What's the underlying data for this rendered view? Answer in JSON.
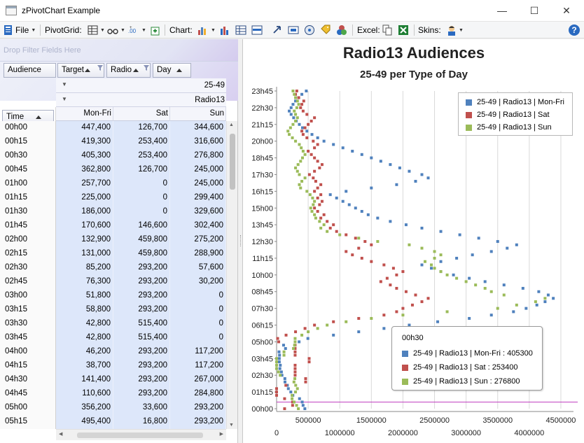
{
  "window": {
    "title": "zPivotChart Example",
    "minimize_glyph": "—",
    "maximize_glyph": "☐",
    "close_glyph": "✕"
  },
  "toolbar": {
    "file_label": "File",
    "pivotgrid_label": "PivotGrid:",
    "chart_label": "Chart:",
    "excel_label": "Excel:",
    "skins_label": "Skins:",
    "help_glyph": "?"
  },
  "filter_zone": {
    "placeholder": "Drop Filter Fields Here"
  },
  "fields": {
    "data_field": "Audience",
    "column_fields": [
      "Target",
      "Radio",
      "Day"
    ],
    "row_field": "Time"
  },
  "col_headers": {
    "target_value": "25-49",
    "radio_value": "Radio13"
  },
  "value_headers": [
    "Mon-Fri",
    "Sat",
    "Sun"
  ],
  "rows": [
    {
      "time": "00h00",
      "v": [
        "447,400",
        "126,700",
        "344,600"
      ]
    },
    {
      "time": "00h15",
      "v": [
        "419,300",
        "253,400",
        "316,600"
      ]
    },
    {
      "time": "00h30",
      "v": [
        "405,300",
        "253,400",
        "276,800"
      ]
    },
    {
      "time": "00h45",
      "v": [
        "362,800",
        "126,700",
        "245,000"
      ]
    },
    {
      "time": "01h00",
      "v": [
        "257,700",
        "0",
        "245,000"
      ]
    },
    {
      "time": "01h15",
      "v": [
        "225,000",
        "0",
        "299,400"
      ]
    },
    {
      "time": "01h30",
      "v": [
        "186,000",
        "0",
        "329,600"
      ]
    },
    {
      "time": "01h45",
      "v": [
        "170,600",
        "146,600",
        "302,400"
      ]
    },
    {
      "time": "02h00",
      "v": [
        "132,900",
        "459,800",
        "275,200"
      ]
    },
    {
      "time": "02h15",
      "v": [
        "131,000",
        "459,800",
        "288,900"
      ]
    },
    {
      "time": "02h30",
      "v": [
        "85,200",
        "293,200",
        "57,600"
      ]
    },
    {
      "time": "02h45",
      "v": [
        "76,300",
        "293,200",
        "30,200"
      ]
    },
    {
      "time": "03h00",
      "v": [
        "51,800",
        "293,200",
        "0"
      ]
    },
    {
      "time": "03h15",
      "v": [
        "58,800",
        "293,200",
        "0"
      ]
    },
    {
      "time": "03h30",
      "v": [
        "42,800",
        "515,400",
        "0"
      ]
    },
    {
      "time": "03h45",
      "v": [
        "42,800",
        "515,400",
        "0"
      ]
    },
    {
      "time": "04h00",
      "v": [
        "46,200",
        "293,200",
        "117,200"
      ]
    },
    {
      "time": "04h15",
      "v": [
        "38,700",
        "293,200",
        "117,200"
      ]
    },
    {
      "time": "04h30",
      "v": [
        "141,400",
        "293,200",
        "267,000"
      ]
    },
    {
      "time": "04h45",
      "v": [
        "110,600",
        "293,200",
        "284,800"
      ]
    },
    {
      "time": "05h00",
      "v": [
        "356,200",
        "33,600",
        "293,200"
      ]
    },
    {
      "time": "05h15",
      "v": [
        "495,400",
        "16,800",
        "293,200"
      ]
    }
  ],
  "chart": {
    "title": "Radio13 Audiences",
    "subtitle": "25-49 per Type of Day",
    "legend": [
      {
        "label": "25-49 | Radio13 | Mon-Fri",
        "color": "#4f81bd"
      },
      {
        "label": "25-49 | Radio13 | Sat",
        "color": "#c0504d"
      },
      {
        "label": "25-49 | Radio13 | Sun",
        "color": "#9bbb59"
      }
    ],
    "tooltip": {
      "title": "00h30",
      "items": [
        {
          "label": "25-49 | Radio13 | Mon-Fri : 405300",
          "color": "#4f81bd"
        },
        {
          "label": "25-49 | Radio13 | Sat : 253400",
          "color": "#c0504d"
        },
        {
          "label": "25-49 | Radio13 | Sun : 276800",
          "color": "#9bbb59"
        }
      ]
    }
  },
  "chart_data": {
    "type": "scatter",
    "title": "Radio13 Audiences",
    "subtitle": "25-49 per Type of Day",
    "xlabel": "",
    "ylabel": "",
    "xlim": [
      0,
      4700000
    ],
    "grid": true,
    "legend_position": "top-right",
    "x_ticks_upper": [
      "500000",
      "1500000",
      "2500000",
      "3500000",
      "4500000"
    ],
    "x_ticks_lower": [
      "0",
      "1000000",
      "2000000",
      "3000000",
      "4000000"
    ],
    "y_ticks": [
      "00h00",
      "01h15",
      "02h30",
      "03h45",
      "05h00",
      "06h15",
      "07h30",
      "08h45",
      "10h00",
      "11h15",
      "12h30",
      "13h45",
      "15h00",
      "16h15",
      "17h30",
      "18h45",
      "20h00",
      "21h15",
      "22h30",
      "23h45"
    ],
    "y_categories": [
      "00h00",
      "00h15",
      "00h30",
      "00h45",
      "01h00",
      "01h15",
      "01h30",
      "01h45",
      "02h00",
      "02h15",
      "02h30",
      "02h45",
      "03h00",
      "03h15",
      "03h30",
      "03h45",
      "04h00",
      "04h15",
      "04h30",
      "04h45",
      "05h00",
      "05h15",
      "05h30",
      "05h45",
      "06h00",
      "06h15",
      "06h30",
      "06h45",
      "07h00",
      "07h15",
      "07h30",
      "07h45",
      "08h00",
      "08h15",
      "08h30",
      "08h45",
      "09h00",
      "09h15",
      "09h30",
      "09h45",
      "10h00",
      "10h15",
      "10h30",
      "10h45",
      "11h00",
      "11h15",
      "11h30",
      "11h45",
      "12h00",
      "12h15",
      "12h30",
      "12h45",
      "13h00",
      "13h15",
      "13h30",
      "13h45",
      "14h00",
      "14h15",
      "14h30",
      "14h45",
      "15h00",
      "15h15",
      "15h30",
      "15h45",
      "16h00",
      "16h15",
      "16h30",
      "16h45",
      "17h00",
      "17h15",
      "17h30",
      "17h45",
      "18h00",
      "18h15",
      "18h30",
      "18h45",
      "19h00",
      "19h15",
      "19h30",
      "19h45",
      "20h00",
      "20h15",
      "20h30",
      "20h45",
      "21h00",
      "21h15",
      "21h30",
      "21h45",
      "22h00",
      "22h15",
      "22h30",
      "22h45",
      "23h00",
      "23h15",
      "23h30",
      "23h45"
    ],
    "series": [
      {
        "name": "25-49 | Radio13 | Mon-Fri",
        "color": "#4f81bd",
        "values": [
          447400,
          419300,
          405300,
          362800,
          257700,
          225000,
          186000,
          170600,
          132900,
          131000,
          85200,
          76300,
          51800,
          58800,
          42800,
          42800,
          46200,
          38700,
          141400,
          110600,
          356200,
          495400,
          900000,
          1300000,
          1700000,
          2100000,
          2550000,
          3050000,
          3400000,
          3750000,
          3950000,
          4120000,
          4250000,
          4380000,
          4300000,
          4150000,
          3900000,
          3600000,
          3300000,
          3050000,
          2800000,
          2600000,
          2450000,
          2300000,
          2600000,
          2850000,
          3100000,
          3400000,
          3650000,
          3800000,
          3500000,
          3200000,
          2900000,
          2600000,
          2300000,
          2050000,
          1800000,
          1600000,
          1450000,
          1350000,
          1250000,
          1150000,
          1050000,
          950000,
          850000,
          1100000,
          1500000,
          1900000,
          2200000,
          2400000,
          2300000,
          2100000,
          1950000,
          1800000,
          1650000,
          1500000,
          1350000,
          1200000,
          1050000,
          900000,
          750000,
          650000,
          560000,
          480000,
          410000,
          360000,
          310000,
          270000,
          230000,
          200000,
          230000,
          260000,
          300000,
          350000,
          400000,
          470000
        ]
      },
      {
        "name": "25-49 | Radio13 | Sat",
        "color": "#c0504d",
        "values": [
          126700,
          253400,
          253400,
          126700,
          0,
          0,
          0,
          146600,
          459800,
          459800,
          293200,
          293200,
          293200,
          293200,
          515400,
          515400,
          293200,
          293200,
          293200,
          293200,
          33600,
          16800,
          150000,
          300000,
          450000,
          600000,
          900000,
          1300000,
          1700000,
          1900000,
          2000000,
          2150000,
          2300000,
          2400000,
          2200000,
          2050000,
          1900000,
          1800000,
          1650000,
          1750000,
          1900000,
          2000000,
          1850000,
          1700000,
          1500000,
          1350000,
          1200000,
          1100000,
          1300000,
          1500000,
          1400000,
          1250000,
          1100000,
          950000,
          850000,
          900000,
          800000,
          700000,
          750000,
          650000,
          600000,
          680000,
          720000,
          650000,
          700000,
          600000,
          650000,
          700000,
          620000,
          580000,
          520000,
          600000,
          680000,
          720000,
          650000,
          600000,
          550000,
          500000,
          600000,
          650000,
          580000,
          480000,
          420000,
          400000,
          450000,
          500000,
          550000,
          600000,
          480000,
          420000,
          380000,
          400000,
          430000,
          350000,
          300000,
          320000
        ]
      },
      {
        "name": "25-49 | Radio13 | Sun",
        "color": "#9bbb59",
        "values": [
          344600,
          316600,
          276800,
          245000,
          245000,
          299400,
          329600,
          302400,
          275200,
          288900,
          57600,
          30200,
          0,
          0,
          0,
          0,
          117200,
          117200,
          267000,
          284800,
          293200,
          293200,
          400000,
          500000,
          650000,
          800000,
          1100000,
          1500000,
          2000000,
          2700000,
          3500000,
          3800000,
          4100000,
          4250000,
          3600000,
          3400000,
          3300000,
          3150000,
          3000000,
          2850000,
          2700000,
          2600000,
          2500000,
          2450000,
          2350000,
          2500000,
          2600000,
          2500000,
          2300000,
          2100000,
          1600000,
          1300000,
          1000000,
          800000,
          700000,
          750000,
          680000,
          620000,
          600000,
          560000,
          540000,
          580000,
          600000,
          570000,
          530000,
          480000,
          380000,
          360000,
          400000,
          450000,
          360000,
          330000,
          300000,
          340000,
          380000,
          410000,
          450000,
          420000,
          390000,
          360000,
          300000,
          250000,
          200000,
          180000,
          220000,
          260000,
          300000,
          330000,
          300000,
          280000,
          320000,
          350000,
          330000,
          300000,
          280000,
          260000
        ]
      }
    ],
    "highlight_category": "00h30"
  }
}
